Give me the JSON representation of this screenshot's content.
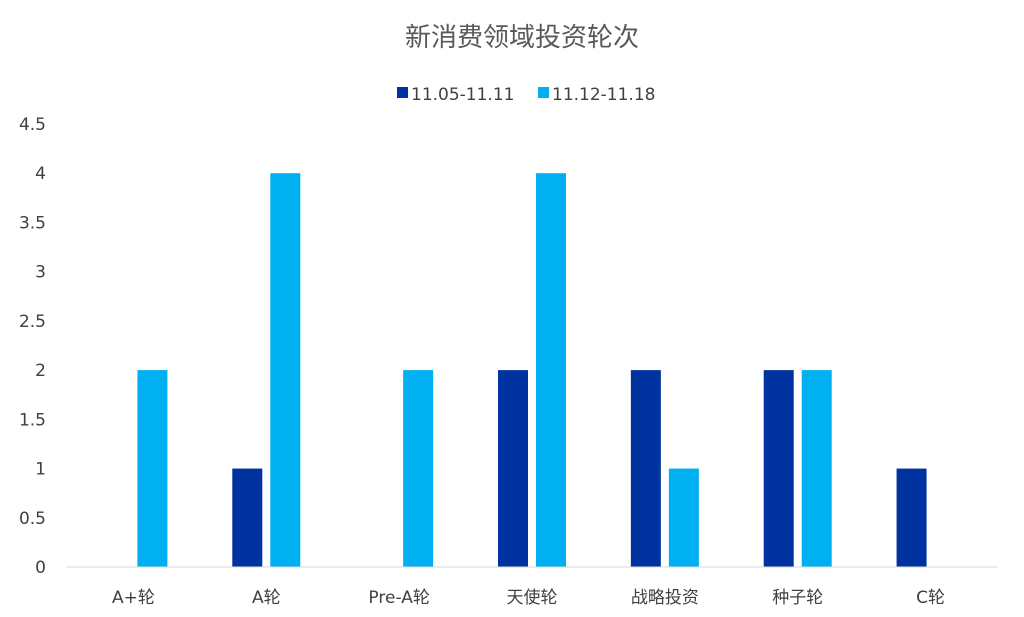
{
  "chart_data": {
    "type": "bar",
    "title": "新消费领域投资轮次",
    "categories": [
      "A+轮",
      "A轮",
      "Pre-A轮",
      "天使轮",
      "战略投资",
      "种子轮",
      "C轮"
    ],
    "series": [
      {
        "name": "11.05-11.11",
        "color": "#0033A0",
        "values": [
          0,
          1,
          0,
          2,
          2,
          2,
          1
        ]
      },
      {
        "name": "11.12-11.18",
        "color": "#00B0F0",
        "values": [
          2,
          4,
          2,
          4,
          1,
          2,
          0
        ]
      }
    ],
    "ylim": [
      0,
      4.5
    ],
    "yticks": [
      "0",
      "0.5",
      "1",
      "1.5",
      "2",
      "2.5",
      "3",
      "3.5",
      "4",
      "4.5"
    ],
    "xlabel": "",
    "ylabel": "",
    "grid": false,
    "legend_position": "top-center"
  }
}
